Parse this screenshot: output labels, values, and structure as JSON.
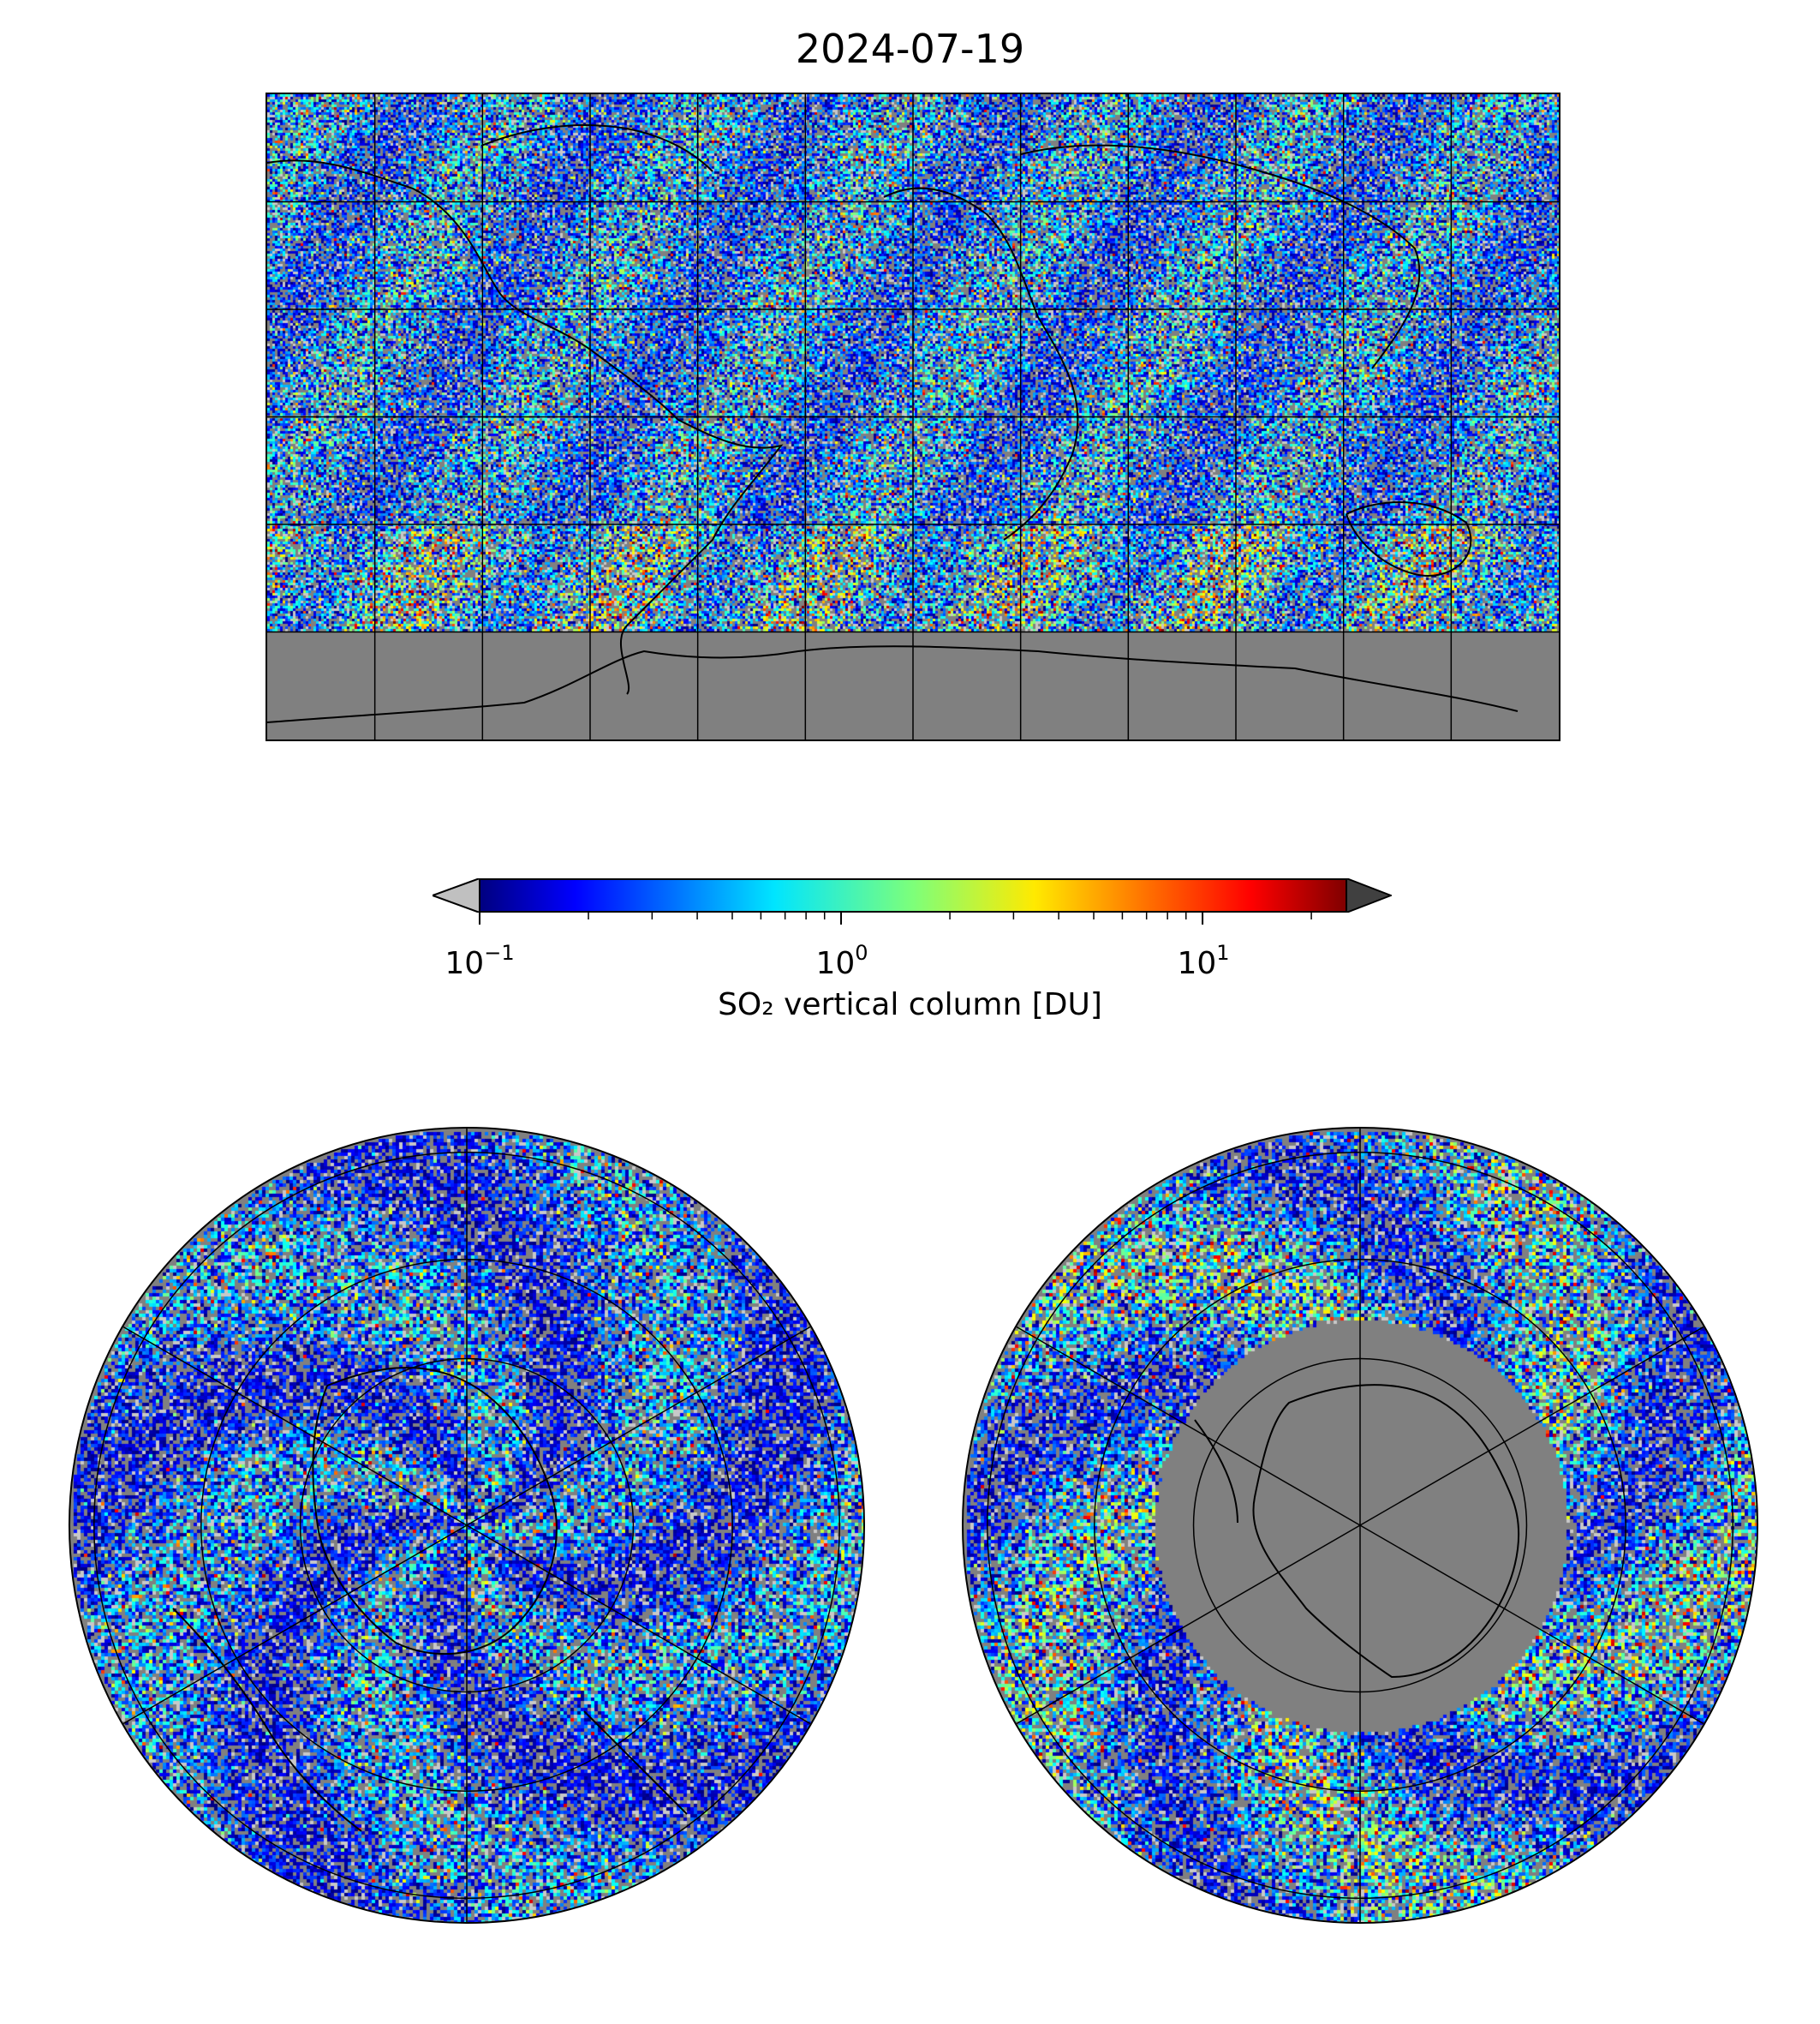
{
  "title": "2024-07-19",
  "colorbar": {
    "label": "SO₂ vertical column [DU]",
    "scale": "log",
    "range": [
      0.1,
      25
    ],
    "colormap": "jet",
    "under_color": "#c0c0c0",
    "over_color": "#404040",
    "ticks": [
      {
        "base": "10",
        "exp": "−1",
        "value": 0.1
      },
      {
        "base": "10",
        "exp": "0",
        "value": 1
      },
      {
        "base": "10",
        "exp": "1",
        "value": 10
      }
    ]
  },
  "maps": [
    {
      "name": "world",
      "projection": "plate-carree",
      "background": "#808080"
    },
    {
      "name": "north-polar",
      "projection": "north-polar-stereographic",
      "background": "#808080"
    },
    {
      "name": "south-polar",
      "projection": "south-polar-stereographic",
      "background": "#808080"
    }
  ]
}
